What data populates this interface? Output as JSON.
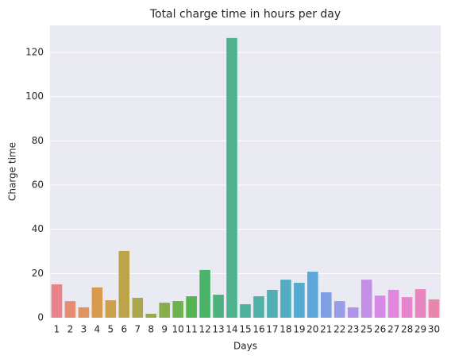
{
  "chart_data": {
    "type": "bar",
    "title": "Total charge time in hours per day",
    "xlabel": "Days",
    "ylabel": "Charge time",
    "categories": [
      "1",
      "2",
      "3",
      "4",
      "5",
      "6",
      "7",
      "8",
      "9",
      "10",
      "11",
      "12",
      "13",
      "14",
      "15",
      "16",
      "17",
      "18",
      "19",
      "20",
      "21",
      "22",
      "23",
      "25",
      "26",
      "27",
      "28",
      "29",
      "30"
    ],
    "values": [
      15.1,
      7.5,
      4.7,
      13.7,
      7.9,
      30.2,
      9,
      1.8,
      6.8,
      7.5,
      9.7,
      21.6,
      10.4,
      126.5,
      6.1,
      9.7,
      12.6,
      17.2,
      15.8,
      20.8,
      11.5,
      7.5,
      4.7,
      17.2,
      10,
      12.6,
      9.3,
      12.9,
      8.3
    ],
    "colors": [
      "#e8838a",
      "#e48d74",
      "#df9461",
      "#d79a4f",
      "#cba14a",
      "#bca44a",
      "#aaa84a",
      "#98ab4a",
      "#86ae4a",
      "#6db24c",
      "#55b351",
      "#4db36a",
      "#4db27d",
      "#4db28d",
      "#4eb19b",
      "#50b0a8",
      "#51afb4",
      "#53adc1",
      "#55abcf",
      "#5aa7dc",
      "#7fa1e4",
      "#999ce6",
      "#af95e6",
      "#c490e6",
      "#d68ae6",
      "#e386dd",
      "#e884ce",
      "#e985bf",
      "#e886ab"
    ],
    "ylim": [
      0,
      132.2
    ],
    "yticks": [
      0,
      20,
      40,
      60,
      80,
      100,
      120
    ],
    "grid": true
  }
}
